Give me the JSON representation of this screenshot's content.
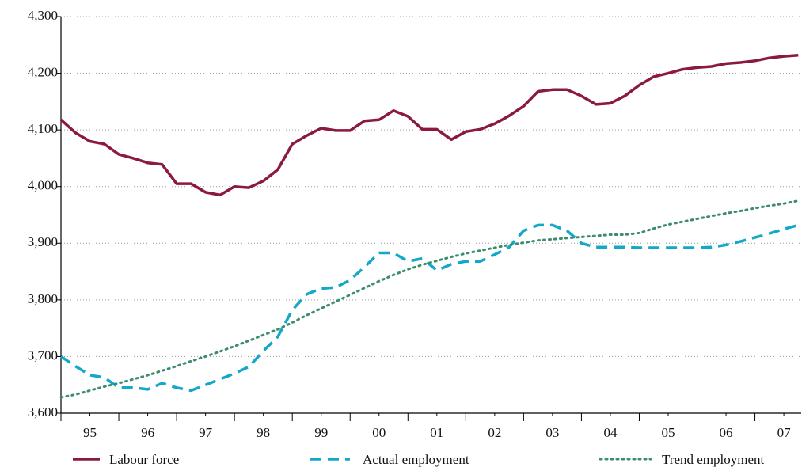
{
  "chart_data": {
    "type": "line",
    "x": [
      1995.0,
      1995.25,
      1995.5,
      1995.75,
      1996.0,
      1996.25,
      1996.5,
      1996.75,
      1997.0,
      1997.25,
      1997.5,
      1997.75,
      1998.0,
      1998.25,
      1998.5,
      1998.75,
      1999.0,
      1999.25,
      1999.5,
      1999.75,
      2000.0,
      2000.25,
      2000.5,
      2000.75,
      2001.0,
      2001.25,
      2001.5,
      2001.75,
      2002.0,
      2002.25,
      2002.5,
      2002.75,
      2003.0,
      2003.25,
      2003.5,
      2003.75,
      2004.0,
      2004.25,
      2004.5,
      2004.75,
      2005.0,
      2005.25,
      2005.5,
      2005.75,
      2006.0,
      2006.25,
      2006.5,
      2006.75,
      2007.0,
      2007.25,
      2007.5,
      2007.75
    ],
    "series": [
      {
        "name": "Labour force",
        "color": "#8b1a3c",
        "style": "solid",
        "values": [
          4118,
          4095,
          4080,
          4075,
          4057,
          4050,
          4042,
          4039,
          4005,
          4005,
          3990,
          3985,
          4000,
          3998,
          4010,
          4030,
          4075,
          4090,
          4103,
          4099,
          4099,
          4116,
          4118,
          4134,
          4124,
          4101,
          4101,
          4083,
          4097,
          4101,
          4111,
          4125,
          4142,
          4168,
          4171,
          4171,
          4160,
          4145,
          4147,
          4160,
          4179,
          4194,
          4200,
          4207,
          4210,
          4212,
          4217,
          4219,
          4222,
          4227,
          4230,
          4232
        ]
      },
      {
        "name": "Actual employment",
        "color": "#14a8c8",
        "style": "dashed",
        "values": [
          3700,
          3683,
          3667,
          3663,
          3645,
          3645,
          3642,
          3653,
          3645,
          3640,
          3650,
          3660,
          3670,
          3682,
          3710,
          3735,
          3782,
          3810,
          3820,
          3822,
          3835,
          3858,
          3883,
          3883,
          3868,
          3873,
          3852,
          3863,
          3868,
          3868,
          3880,
          3893,
          3922,
          3932,
          3932,
          3922,
          3900,
          3893,
          3893,
          3893,
          3892,
          3892,
          3892,
          3892,
          3892,
          3893,
          3897,
          3903,
          3910,
          3917,
          3925,
          3932
        ]
      },
      {
        "name": "Trend employment",
        "color": "#3d8c70",
        "style": "dotted",
        "values": [
          3628,
          3633,
          3640,
          3647,
          3653,
          3660,
          3667,
          3675,
          3683,
          3692,
          3700,
          3709,
          3718,
          3728,
          3738,
          3748,
          3760,
          3773,
          3785,
          3797,
          3809,
          3821,
          3833,
          3844,
          3854,
          3862,
          3869,
          3876,
          3882,
          3887,
          3892,
          3897,
          3901,
          3905,
          3907,
          3909,
          3911,
          3913,
          3915,
          3915,
          3918,
          3926,
          3933,
          3938,
          3943,
          3948,
          3953,
          3957,
          3962,
          3966,
          3970,
          3975
        ]
      }
    ],
    "xlim": [
      1995,
      2007.8
    ],
    "xticks": [
      {
        "value": 1995.5,
        "label": "95"
      },
      {
        "value": 1996.5,
        "label": "96"
      },
      {
        "value": 1997.5,
        "label": "97"
      },
      {
        "value": 1998.5,
        "label": "98"
      },
      {
        "value": 1999.5,
        "label": "99"
      },
      {
        "value": 2000.5,
        "label": "00"
      },
      {
        "value": 2001.5,
        "label": "01"
      },
      {
        "value": 2002.5,
        "label": "02"
      },
      {
        "value": 2003.5,
        "label": "03"
      },
      {
        "value": 2004.5,
        "label": "04"
      },
      {
        "value": 2005.5,
        "label": "05"
      },
      {
        "value": 2006.5,
        "label": "06"
      },
      {
        "value": 2007.5,
        "label": "07"
      }
    ],
    "ylim": [
      3600,
      4300
    ],
    "yticks": [
      {
        "value": 3600,
        "label": "3,600"
      },
      {
        "value": 3700,
        "label": "3,700"
      },
      {
        "value": 3800,
        "label": "3,800"
      },
      {
        "value": 3900,
        "label": "3,900"
      },
      {
        "value": 4000,
        "label": "4,000"
      },
      {
        "value": 4100,
        "label": "4,100"
      },
      {
        "value": 4200,
        "label": "4,200"
      },
      {
        "value": 4300,
        "label": "4,300"
      }
    ],
    "grid": true,
    "legend": "bottom"
  }
}
